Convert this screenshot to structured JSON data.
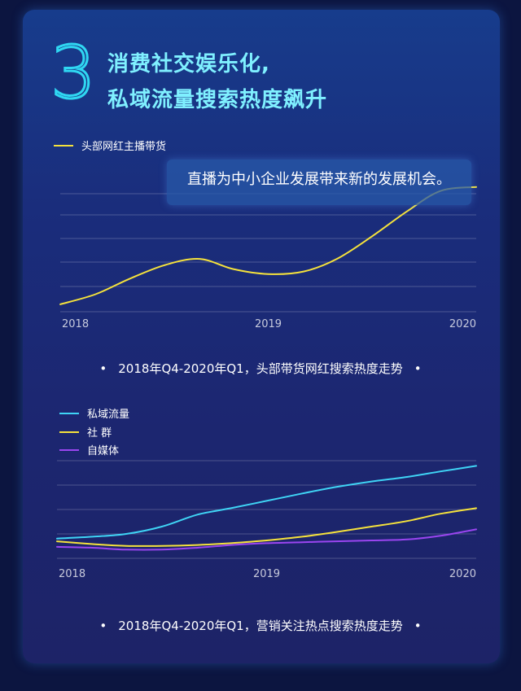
{
  "heading": {
    "number": "3",
    "line1": "消费社交娱乐化,",
    "line2": "私域流量搜索热度飙升"
  },
  "chart_data": [
    {
      "type": "line",
      "callout": "直播为中小企业发展带来新的发展机会。",
      "caption": "2018年Q4-2020年Q1，头部带货网红搜索热度走势",
      "x_ticks": [
        "2018",
        "2019",
        "2020"
      ],
      "grid": true,
      "legend_position": "top-left",
      "series": [
        {
          "name": "头部网红主播带货",
          "color": "#f5e23c",
          "x": [
            2018.0,
            2018.17,
            2018.33,
            2018.5,
            2018.67,
            2018.83,
            2019.0,
            2019.17,
            2019.33,
            2019.5,
            2019.67,
            2019.83,
            2020.0
          ],
          "y": [
            0.2,
            1.0,
            2.2,
            3.3,
            3.8,
            3.0,
            2.6,
            2.8,
            3.8,
            5.6,
            7.6,
            9.2,
            9.5
          ]
        }
      ]
    },
    {
      "type": "line",
      "caption": "2018年Q4-2020年Q1，营销关注热点搜索热度走势",
      "x_ticks": [
        "2018",
        "2019",
        "2020"
      ],
      "grid": true,
      "legend_position": "top-left",
      "series": [
        {
          "name": "私域流量",
          "color": "#3fd4f5",
          "x": [
            2018.0,
            2018.17,
            2018.33,
            2018.5,
            2018.67,
            2018.83,
            2019.0,
            2019.17,
            2019.33,
            2019.5,
            2019.67,
            2019.83,
            2020.0
          ],
          "y": [
            1.0,
            1.2,
            1.5,
            2.3,
            3.6,
            4.3,
            5.1,
            5.9,
            6.6,
            7.2,
            7.7,
            8.3,
            8.9
          ]
        },
        {
          "name": "社 群",
          "color": "#f5e23c",
          "x": [
            2018.0,
            2018.17,
            2018.33,
            2018.5,
            2018.67,
            2018.83,
            2019.0,
            2019.17,
            2019.33,
            2019.5,
            2019.67,
            2019.83,
            2020.0
          ],
          "y": [
            0.7,
            0.4,
            0.2,
            0.2,
            0.3,
            0.5,
            0.8,
            1.2,
            1.7,
            2.3,
            2.9,
            3.7,
            4.3
          ]
        },
        {
          "name": "自媒体",
          "color": "#9a45f0",
          "x": [
            2018.0,
            2018.17,
            2018.33,
            2018.5,
            2018.67,
            2018.83,
            2019.0,
            2019.17,
            2019.33,
            2019.5,
            2019.67,
            2019.83,
            2020.0
          ],
          "y": [
            0.1,
            0.0,
            -0.2,
            -0.2,
            0.0,
            0.3,
            0.5,
            0.6,
            0.7,
            0.8,
            0.9,
            1.3,
            2.0
          ]
        }
      ]
    }
  ]
}
